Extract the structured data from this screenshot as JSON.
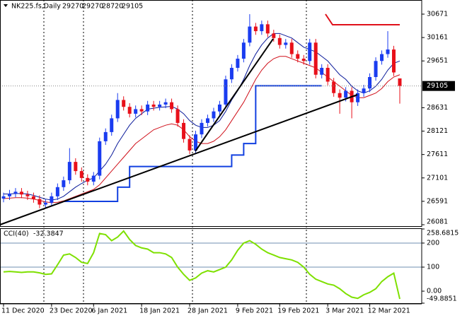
{
  "chart_data": [
    {
      "type": "candlestick",
      "title": "NK225.fs,Daily",
      "categories": [
        "11 Dec 2020",
        null,
        null,
        null,
        null,
        null,
        null,
        null,
        "23 Dec 2020",
        null,
        null,
        null,
        null,
        null,
        null,
        "6 Jan 2021",
        null,
        null,
        null,
        null,
        null,
        null,
        null,
        "18 Jan 2021",
        null,
        null,
        null,
        null,
        null,
        null,
        null,
        "28 Jan 2021",
        null,
        null,
        null,
        null,
        null,
        null,
        null,
        "9 Feb 2021",
        null,
        null,
        null,
        null,
        null,
        null,
        "19 Feb 2021",
        null,
        null,
        null,
        null,
        null,
        null,
        null,
        "3 Mar 2021",
        null,
        null,
        null,
        null,
        null,
        null,
        "12 Mar 2021",
        null,
        null,
        null,
        null,
        null
      ],
      "open": [
        26650,
        26700,
        26760,
        26800,
        26740,
        26700,
        26640,
        26520,
        26560,
        26700,
        26900,
        27050,
        27450,
        27250,
        27100,
        27020,
        27150,
        27900,
        28100,
        28400,
        28800,
        28650,
        28500,
        28600,
        28550,
        28700,
        28650,
        28700,
        28750,
        28600,
        28300,
        27950,
        27700,
        28050,
        28300,
        28400,
        28550,
        28700,
        29250,
        29500,
        29700,
        30050,
        30400,
        30300,
        30450,
        30250,
        30150,
        30000,
        30050,
        29800,
        29700,
        29650,
        30050,
        29350,
        29500,
        29200,
        28950,
        28850,
        29000,
        28750,
        28950,
        29050,
        29300,
        29650,
        29800,
        29900,
        29270
      ],
      "high": [
        26780,
        26840,
        26880,
        26880,
        26820,
        26780,
        26720,
        26640,
        26780,
        26980,
        27130,
        27750,
        27530,
        27330,
        27180,
        27230,
        27980,
        28180,
        28480,
        28950,
        28880,
        28730,
        28680,
        28680,
        28780,
        28780,
        28780,
        28830,
        28830,
        28680,
        28380,
        28030,
        28130,
        28380,
        28480,
        28630,
        28780,
        29330,
        29580,
        29780,
        30130,
        30670,
        30480,
        30530,
        30530,
        30330,
        30230,
        30130,
        30130,
        29880,
        29780,
        30130,
        30130,
        29580,
        29580,
        29280,
        29030,
        29080,
        29080,
        29030,
        29130,
        29380,
        29730,
        29880,
        30300,
        29980,
        29270
      ],
      "low": [
        26570,
        26620,
        26680,
        26660,
        26620,
        26560,
        26440,
        26440,
        26480,
        26620,
        26820,
        26970,
        27170,
        27020,
        26940,
        26940,
        27070,
        27820,
        28020,
        28320,
        28570,
        28420,
        28420,
        28470,
        28470,
        28570,
        28570,
        28620,
        28520,
        28220,
        27870,
        27620,
        27620,
        27970,
        28220,
        28320,
        28470,
        28620,
        29170,
        29420,
        29620,
        29970,
        30220,
        30220,
        30170,
        30070,
        29920,
        29920,
        29720,
        29620,
        29570,
        29570,
        29270,
        29270,
        29120,
        28870,
        28500,
        28770,
        28400,
        28670,
        28870,
        28970,
        29220,
        29570,
        29720,
        29320,
        28720
      ],
      "close": [
        26700,
        26760,
        26800,
        26740,
        26700,
        26640,
        26520,
        26560,
        26700,
        26900,
        27050,
        27450,
        27250,
        27100,
        27020,
        27150,
        27900,
        28100,
        28400,
        28800,
        28650,
        28500,
        28600,
        28550,
        28700,
        28650,
        28700,
        28750,
        28600,
        28300,
        27950,
        27700,
        28050,
        28300,
        28400,
        28550,
        28700,
        29250,
        29500,
        29700,
        30050,
        30400,
        30300,
        30450,
        30250,
        30150,
        30000,
        30050,
        29800,
        29700,
        29650,
        30050,
        29350,
        29500,
        29200,
        28950,
        28850,
        29000,
        28750,
        28950,
        29050,
        29300,
        29650,
        29800,
        29900,
        29400,
        29105
      ],
      "up_color": "#1a3cf0",
      "down_color": "#e8101a",
      "overlays": [
        {
          "color": "#0a1a9a",
          "values": [
            26750,
            26750,
            26760,
            26760,
            26750,
            26720,
            26680,
            26640,
            26620,
            26640,
            26700,
            26800,
            26900,
            26980,
            27050,
            27100,
            27250,
            27400,
            27600,
            27850,
            28050,
            28250,
            28400,
            28500,
            28600,
            28620,
            28640,
            28650,
            28660,
            28600,
            28500,
            28350,
            28250,
            28200,
            28200,
            28250,
            28350,
            28550,
            28800,
            29000,
            29250,
            29550,
            29800,
            30000,
            30150,
            30250,
            30250,
            30200,
            30150,
            30050,
            29950,
            29900,
            29850,
            29750,
            29650,
            29500,
            29350,
            29250,
            29100,
            29000,
            28950,
            29000,
            29100,
            29250,
            29450,
            29600,
            29650
          ]
        },
        {
          "color": "#d0101a",
          "values": [
            26650,
            26660,
            26670,
            26670,
            26660,
            26640,
            26610,
            26580,
            26560,
            26570,
            26600,
            26650,
            26700,
            26750,
            26800,
            26850,
            26950,
            27100,
            27250,
            27400,
            27550,
            27700,
            27850,
            27950,
            28050,
            28150,
            28200,
            28250,
            28280,
            28250,
            28150,
            28000,
            27900,
            27850,
            27850,
            27900,
            28000,
            28150,
            28350,
            28550,
            28750,
            29000,
            29250,
            29450,
            29600,
            29700,
            29750,
            29750,
            29700,
            29650,
            29600,
            29550,
            29500,
            29400,
            29300,
            29200,
            29100,
            29000,
            28900,
            28850,
            28850,
            28900,
            28950,
            29050,
            29200,
            29300,
            29350
          ]
        },
        {
          "color": "#1240e0",
          "step": true,
          "values": [
            null,
            null,
            null,
            null,
            null,
            null,
            null,
            null,
            null,
            null,
            26590,
            26590,
            26590,
            26590,
            26590,
            26590,
            26590,
            26590,
            26590,
            26900,
            26900,
            27350,
            27350,
            27350,
            27350,
            27350,
            27350,
            27350,
            27350,
            27350,
            27350,
            27350,
            27350,
            27350,
            27350,
            27350,
            27350,
            27350,
            27600,
            27600,
            27850,
            27850,
            29110,
            29110,
            29110,
            29110,
            29110,
            29110,
            29110,
            29110,
            29110,
            29110,
            29110,
            29110,
            null,
            null,
            null,
            null,
            null,
            null,
            null,
            null,
            null,
            null,
            null,
            null,
            null
          ]
        }
      ],
      "ylim": [
        26050,
        30979
      ],
      "yticks": [
        26081,
        26591,
        27101,
        27611,
        28121,
        28631,
        29651,
        30161,
        30671
      ]
    },
    {
      "type": "line",
      "title": "CCI(40)",
      "color": "#7ee000",
      "values": [
        80,
        82,
        80,
        78,
        80,
        80,
        76,
        70,
        72,
        110,
        150,
        155,
        140,
        120,
        115,
        160,
        240,
        235,
        210,
        225,
        250,
        215,
        190,
        180,
        175,
        160,
        160,
        155,
        140,
        100,
        70,
        45,
        55,
        75,
        85,
        80,
        90,
        100,
        130,
        170,
        200,
        210,
        195,
        175,
        160,
        150,
        140,
        135,
        130,
        120,
        100,
        70,
        50,
        40,
        30,
        25,
        10,
        -10,
        -25,
        -30,
        -15,
        -5,
        10,
        40,
        60,
        75,
        -32.3847
      ],
      "ylim": [
        -49.8851,
        258.6815
      ],
      "yticks": [
        258.6815,
        200,
        100,
        {
          "value": 0,
          "label": "0.00"
        },
        -49.8851
      ],
      "levels": [
        200,
        100
      ]
    }
  ]
}
